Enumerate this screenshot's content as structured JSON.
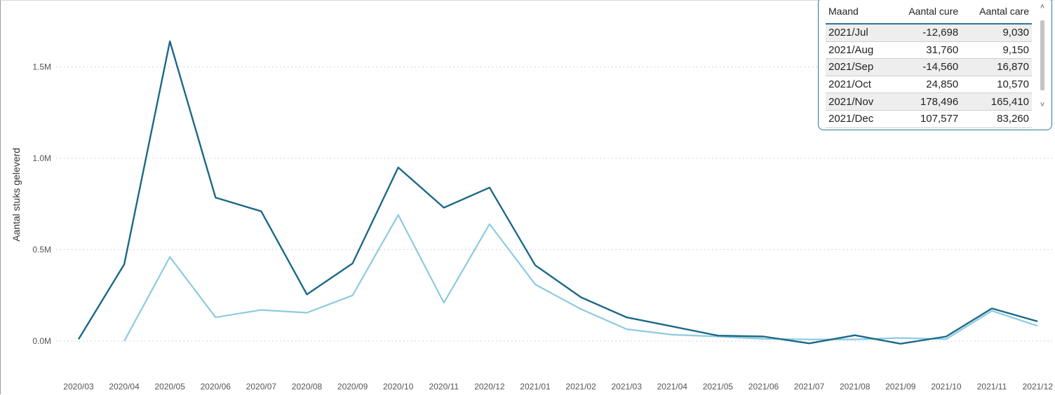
{
  "chart_data": {
    "type": "line",
    "ylabel": "Aantal stuks geleverd",
    "xlabel": "",
    "categories": [
      "2020/03",
      "2020/04",
      "2020/05",
      "2020/06",
      "2020/07",
      "2020/08",
      "2020/09",
      "2020/10",
      "2020/11",
      "2020/12",
      "2021/01",
      "2021/02",
      "2021/03",
      "2021/04",
      "2021/05",
      "2021/06",
      "2021/07",
      "2021/08",
      "2021/09",
      "2021/10",
      "2021/11",
      "2021/12"
    ],
    "y_ticks": [
      "0.0M",
      "0.5M",
      "1.0M",
      "1.5M"
    ],
    "y_tick_values": [
      0,
      0.5,
      1.0,
      1.5
    ],
    "ylim": [
      -0.05,
      1.7
    ],
    "grid": "horizontal dotted",
    "series": [
      {
        "color": "#1b6987",
        "values": [
          0.01,
          0.42,
          1.64,
          0.785,
          0.71,
          0.255,
          0.425,
          0.95,
          0.73,
          0.84,
          0.415,
          0.24,
          0.13,
          0.08,
          0.03,
          0.025,
          -0.012698,
          0.03176,
          -0.01456,
          0.02485,
          0.178496,
          0.107577
        ]
      },
      {
        "color": "#8ccbe0",
        "start_index": 1,
        "values": [
          null,
          0.0,
          0.46,
          0.13,
          0.17,
          0.155,
          0.25,
          0.69,
          0.21,
          0.64,
          0.31,
          0.175,
          0.065,
          0.035,
          0.025,
          0.012,
          0.00903,
          0.00915,
          0.01687,
          0.01057,
          0.16541,
          0.08326
        ]
      }
    ]
  },
  "table": {
    "headers": [
      "Maand",
      "Aantal cure",
      "Aantal care"
    ],
    "rows": [
      [
        "2021/Jul",
        "-12,698",
        "9,030"
      ],
      [
        "2021/Aug",
        "31,760",
        "9,150"
      ],
      [
        "2021/Sep",
        "-14,560",
        "16,870"
      ],
      [
        "2021/Oct",
        "24,850",
        "10,570"
      ],
      [
        "2021/Nov",
        "178,496",
        "165,410"
      ],
      [
        "2021/Dec",
        "107,577",
        "83,260"
      ]
    ],
    "scroll_up_glyph": "˄",
    "scroll_down_glyph": "˅"
  }
}
